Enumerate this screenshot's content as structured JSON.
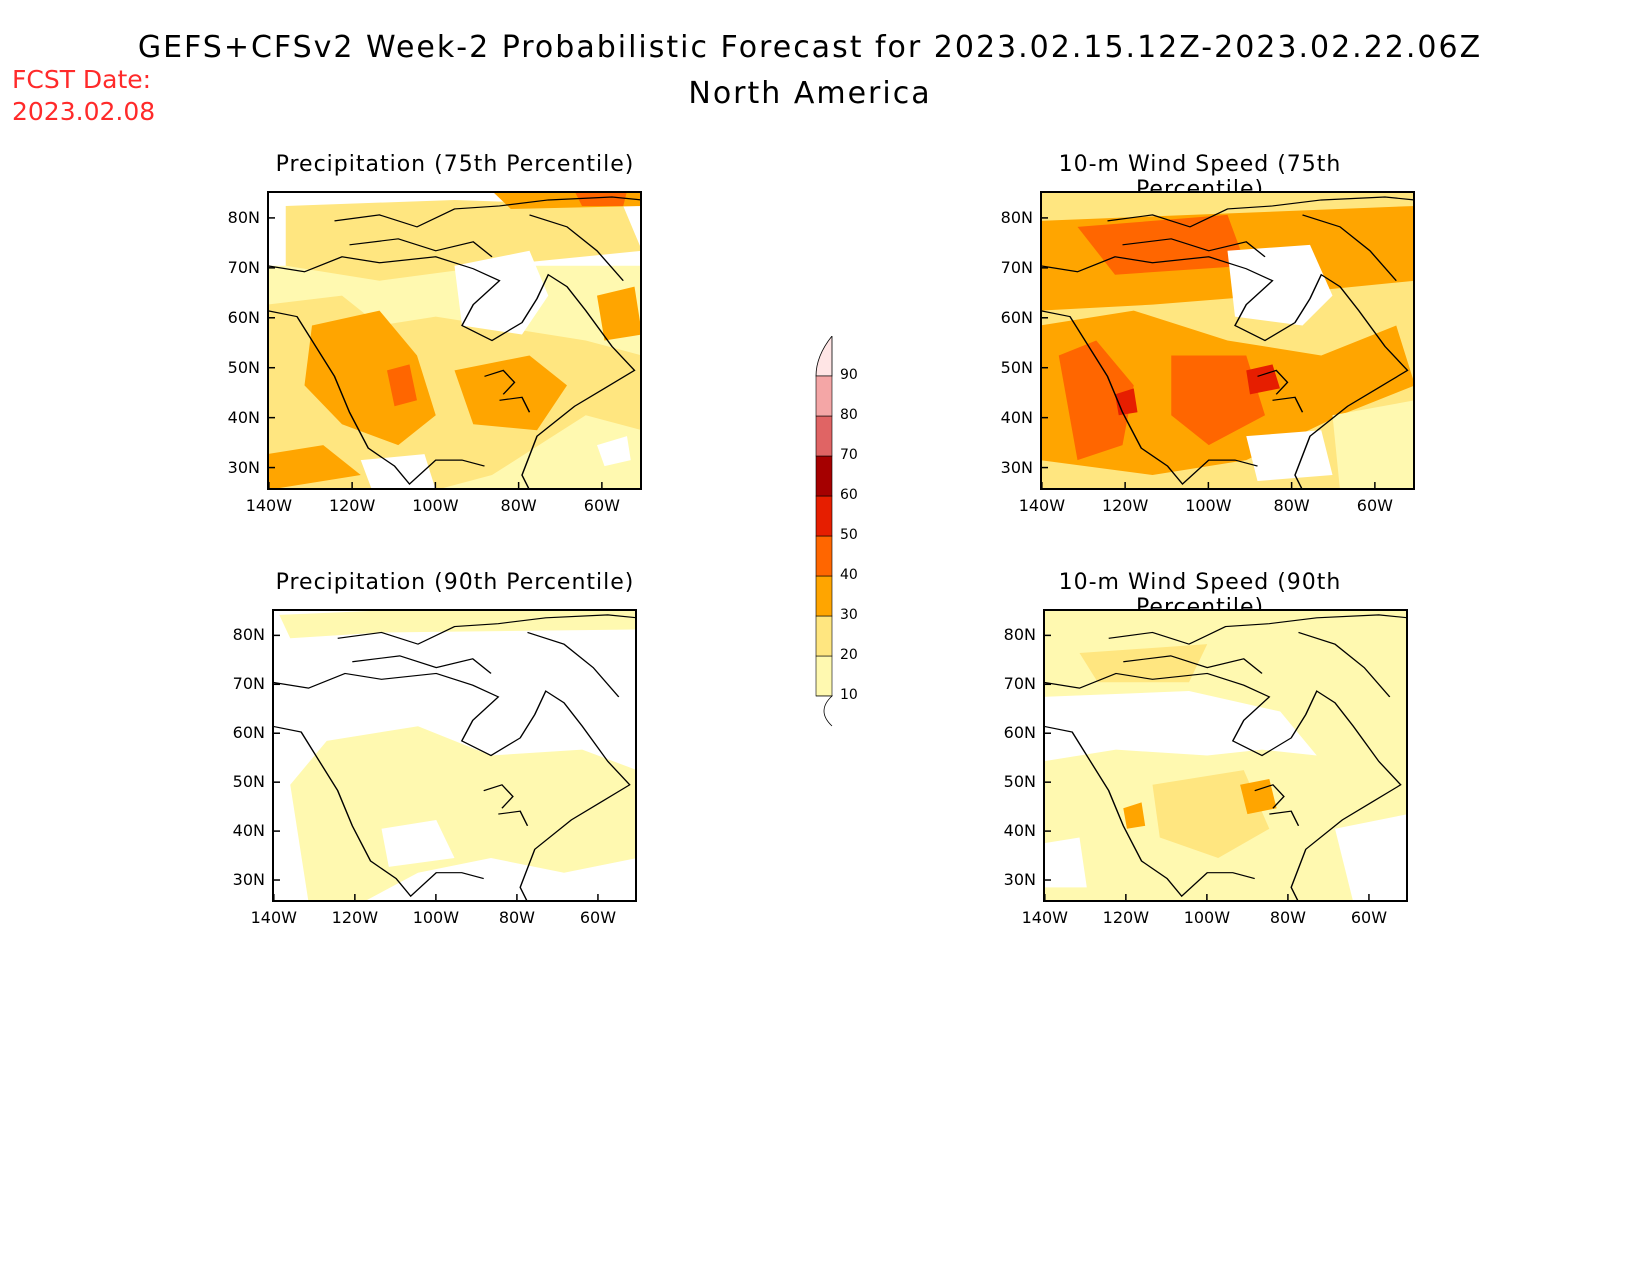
{
  "header": {
    "title": "GEFS+CFSv2 Week-2 Probabilistic Forecast for 2023.02.15.12Z-2023.02.22.06Z",
    "subtitle": "North America",
    "fcst_label": "FCST Date:",
    "fcst_date": "2023.02.08"
  },
  "panels": [
    {
      "title": "Precipitation (75th Percentile)",
      "variant": "precip75"
    },
    {
      "title": "10-m Wind Speed (75th Percentile)",
      "variant": "wind75"
    },
    {
      "title": "Precipitation (90th Percentile)",
      "variant": "precip90"
    },
    {
      "title": "10-m Wind Speed (90th Percentile)",
      "variant": "wind90"
    }
  ],
  "axes": {
    "lat_ticks": [
      "80N",
      "70N",
      "60N",
      "50N",
      "40N",
      "30N"
    ],
    "lon_ticks": [
      "140W",
      "120W",
      "100W",
      "80W",
      "60W"
    ]
  },
  "colorbar": {
    "levels": [
      "10",
      "20",
      "30",
      "40",
      "50",
      "60",
      "70",
      "80",
      "90"
    ],
    "colors": [
      "#fff9b0",
      "#ffe680",
      "#ffa500",
      "#ff6600",
      "#e61e00",
      "#a50000",
      "#e06464",
      "#f4a6a6",
      "#ffe5e5"
    ]
  }
}
